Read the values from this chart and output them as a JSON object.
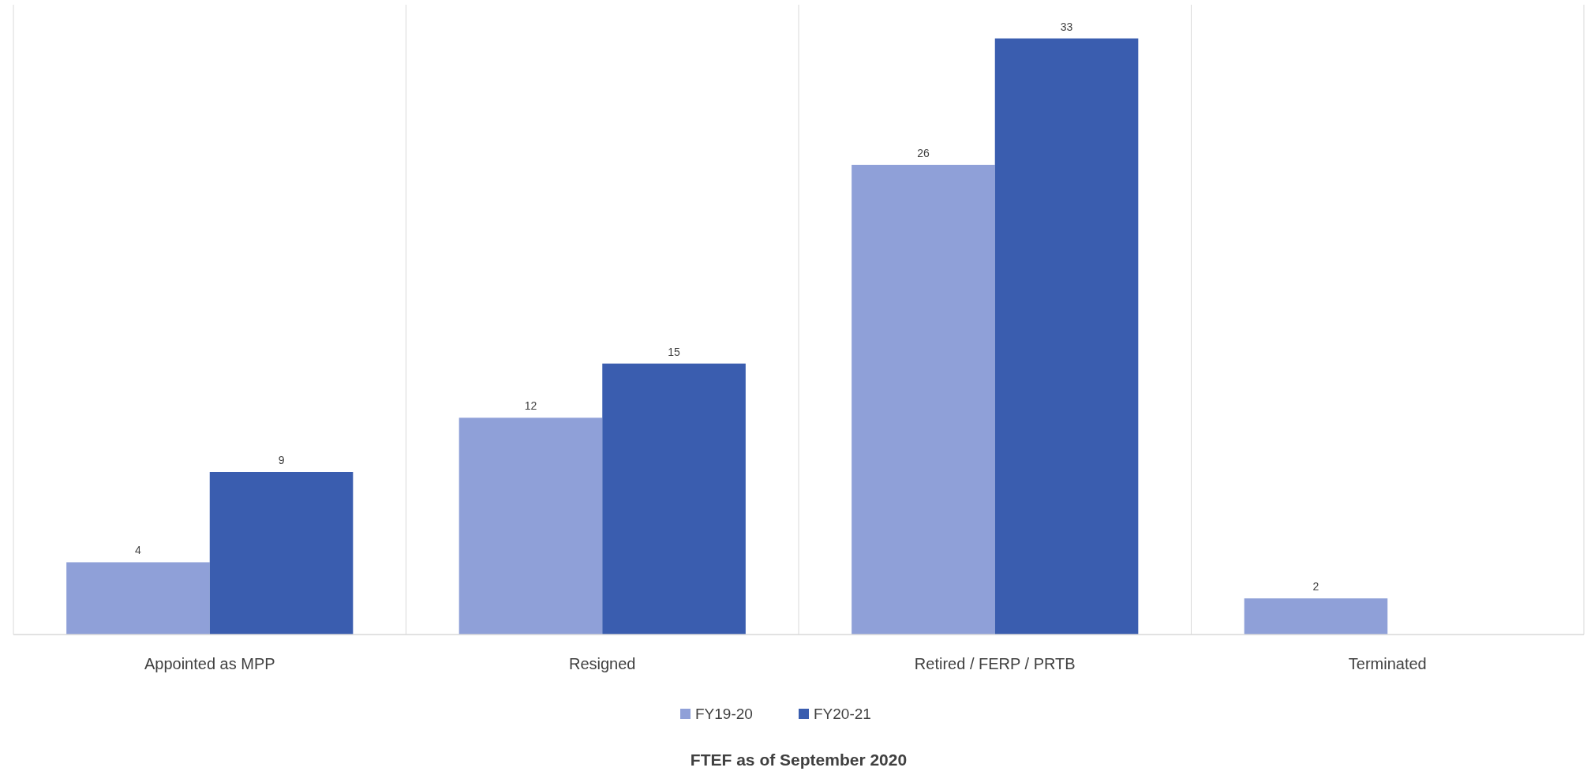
{
  "chart_data": {
    "type": "bar",
    "title": "FTEF as of September 2020",
    "categories": [
      "Appointed as MPP",
      "Resigned",
      "Retired / FERP / PRTB",
      "Terminated"
    ],
    "series": [
      {
        "name": "FY19-20",
        "color": "#8fa0d8",
        "values": [
          4,
          12,
          26,
          2
        ]
      },
      {
        "name": "FY20-21",
        "color": "#3a5daf",
        "values": [
          9,
          15,
          33,
          null
        ]
      }
    ],
    "data_labels": true,
    "grid": "x",
    "legend": "bottom"
  }
}
